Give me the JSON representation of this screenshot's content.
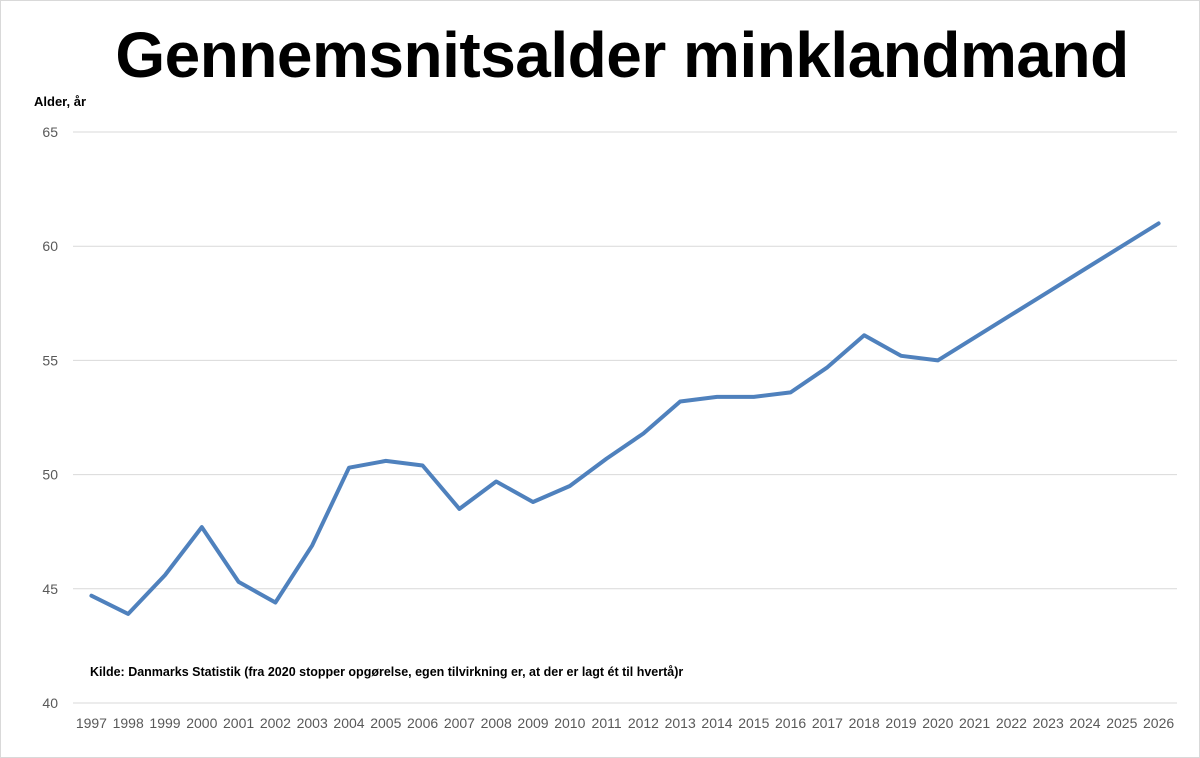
{
  "chart_data": {
    "type": "line",
    "title": "Gennemsnitsalder minklandmand",
    "ylabel": "Alder, år",
    "xlabel": "",
    "ylim": [
      40,
      65
    ],
    "yticks": [
      40,
      45,
      50,
      55,
      60,
      65
    ],
    "grid": true,
    "annotation": "Kilde: Danmarks Statistik (fra 2020 stopper opgørelse, egen tilvirkning er, at der er lagt ét til hvertå)r",
    "categories": [
      "1997",
      "1998",
      "1999",
      "2000",
      "2001",
      "2002",
      "2003",
      "2004",
      "2005",
      "2006",
      "2007",
      "2008",
      "2009",
      "2010",
      "2011",
      "2012",
      "2013",
      "2014",
      "2015",
      "2016",
      "2017",
      "2018",
      "2019",
      "2020",
      "2021",
      "2022",
      "2023",
      "2024",
      "2025",
      "2026"
    ],
    "series": [
      {
        "color": "#4f81bd",
        "values": [
          44.7,
          43.9,
          45.6,
          47.7,
          45.3,
          44.4,
          46.9,
          50.3,
          50.6,
          50.4,
          48.5,
          49.7,
          48.8,
          49.5,
          50.7,
          51.8,
          53.2,
          53.4,
          53.4,
          53.6,
          54.7,
          56.1,
          55.2,
          55.0,
          56.0,
          57.0,
          58.0,
          59.0,
          60.0,
          61.0
        ]
      }
    ]
  }
}
